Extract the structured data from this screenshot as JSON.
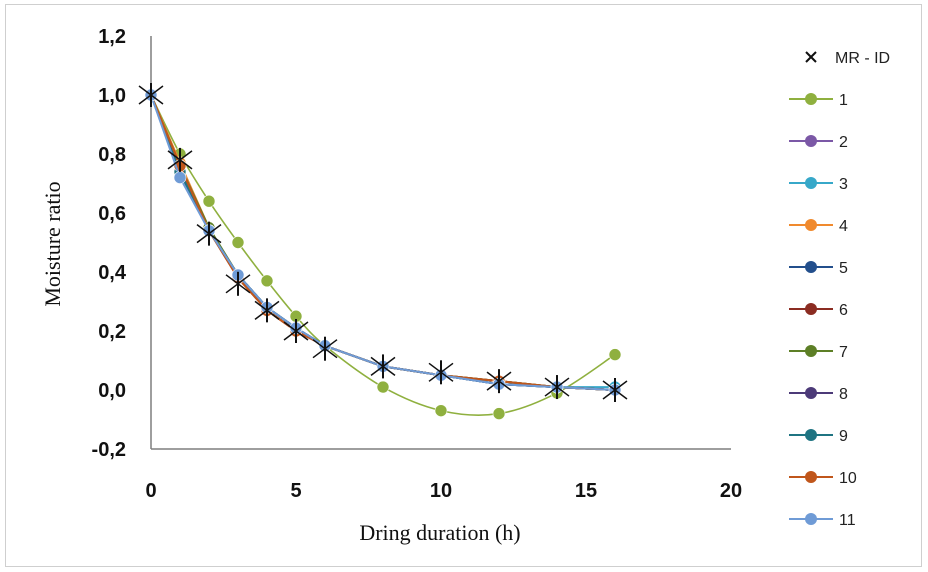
{
  "chart_data": {
    "type": "line",
    "xlabel": "Dring duration (h)",
    "ylabel": "Moisture ratio",
    "xlim": [
      0,
      20
    ],
    "ylim": [
      -0.2,
      1.2
    ],
    "x_ticks": [
      "0",
      "5",
      "10",
      "15",
      "20"
    ],
    "y_ticks": [
      "-0,2",
      "0,0",
      "0,2",
      "0,4",
      "0,6",
      "0,8",
      "1,0",
      "1,2"
    ],
    "grid": false,
    "legend_position": "right",
    "x": [
      0,
      1,
      2,
      3,
      4,
      5,
      6,
      8,
      10,
      12,
      14,
      16
    ],
    "series": [
      {
        "name": "MR - ID",
        "marker": "x",
        "color": "#111111",
        "values": [
          1.0,
          0.78,
          0.53,
          0.36,
          0.27,
          0.2,
          0.14,
          0.08,
          0.06,
          0.03,
          0.01,
          0.0
        ]
      },
      {
        "name": "1",
        "color": "#8fb03f",
        "smooth": true,
        "values": [
          1.0,
          0.8,
          0.64,
          0.5,
          0.37,
          0.25,
          0.15,
          0.01,
          -0.07,
          -0.08,
          -0.01,
          0.12
        ]
      },
      {
        "name": "2",
        "color": "#7b58a6",
        "values": [
          1.0,
          0.74,
          0.54,
          0.39,
          0.28,
          0.21,
          0.15,
          0.08,
          0.05,
          0.02,
          0.01,
          0.0
        ]
      },
      {
        "name": "3",
        "color": "#37a8c9",
        "values": [
          1.0,
          0.73,
          0.54,
          0.39,
          0.28,
          0.21,
          0.15,
          0.08,
          0.05,
          0.03,
          0.01,
          0.01
        ]
      },
      {
        "name": "4",
        "color": "#f08a2e",
        "values": [
          1.0,
          0.77,
          0.55,
          0.38,
          0.27,
          0.2,
          0.15,
          0.08,
          0.05,
          0.03,
          0.01,
          0.0
        ]
      },
      {
        "name": "5",
        "color": "#234f8c",
        "values": [
          1.0,
          0.74,
          0.54,
          0.39,
          0.28,
          0.21,
          0.15,
          0.08,
          0.05,
          0.02,
          0.01,
          0.0
        ]
      },
      {
        "name": "6",
        "color": "#8b2c22",
        "values": [
          1.0,
          0.76,
          0.54,
          0.38,
          0.27,
          0.2,
          0.15,
          0.08,
          0.05,
          0.03,
          0.01,
          0.0
        ]
      },
      {
        "name": "7",
        "color": "#5d7f26",
        "values": [
          1.0,
          0.76,
          0.55,
          0.39,
          0.28,
          0.21,
          0.15,
          0.08,
          0.05,
          0.03,
          0.01,
          0.0
        ]
      },
      {
        "name": "8",
        "color": "#4c3a78",
        "values": [
          1.0,
          0.74,
          0.54,
          0.39,
          0.28,
          0.21,
          0.15,
          0.08,
          0.05,
          0.02,
          0.01,
          0.0
        ]
      },
      {
        "name": "9",
        "color": "#1f7482",
        "values": [
          1.0,
          0.74,
          0.54,
          0.39,
          0.28,
          0.21,
          0.15,
          0.08,
          0.05,
          0.02,
          0.01,
          0.0
        ]
      },
      {
        "name": "10",
        "color": "#c0561b",
        "values": [
          1.0,
          0.76,
          0.54,
          0.38,
          0.27,
          0.2,
          0.15,
          0.08,
          0.05,
          0.03,
          0.01,
          0.0
        ]
      },
      {
        "name": "11",
        "color": "#6f9bd6",
        "values": [
          1.0,
          0.72,
          0.54,
          0.39,
          0.28,
          0.21,
          0.15,
          0.08,
          0.05,
          0.02,
          0.01,
          0.0
        ]
      }
    ]
  }
}
